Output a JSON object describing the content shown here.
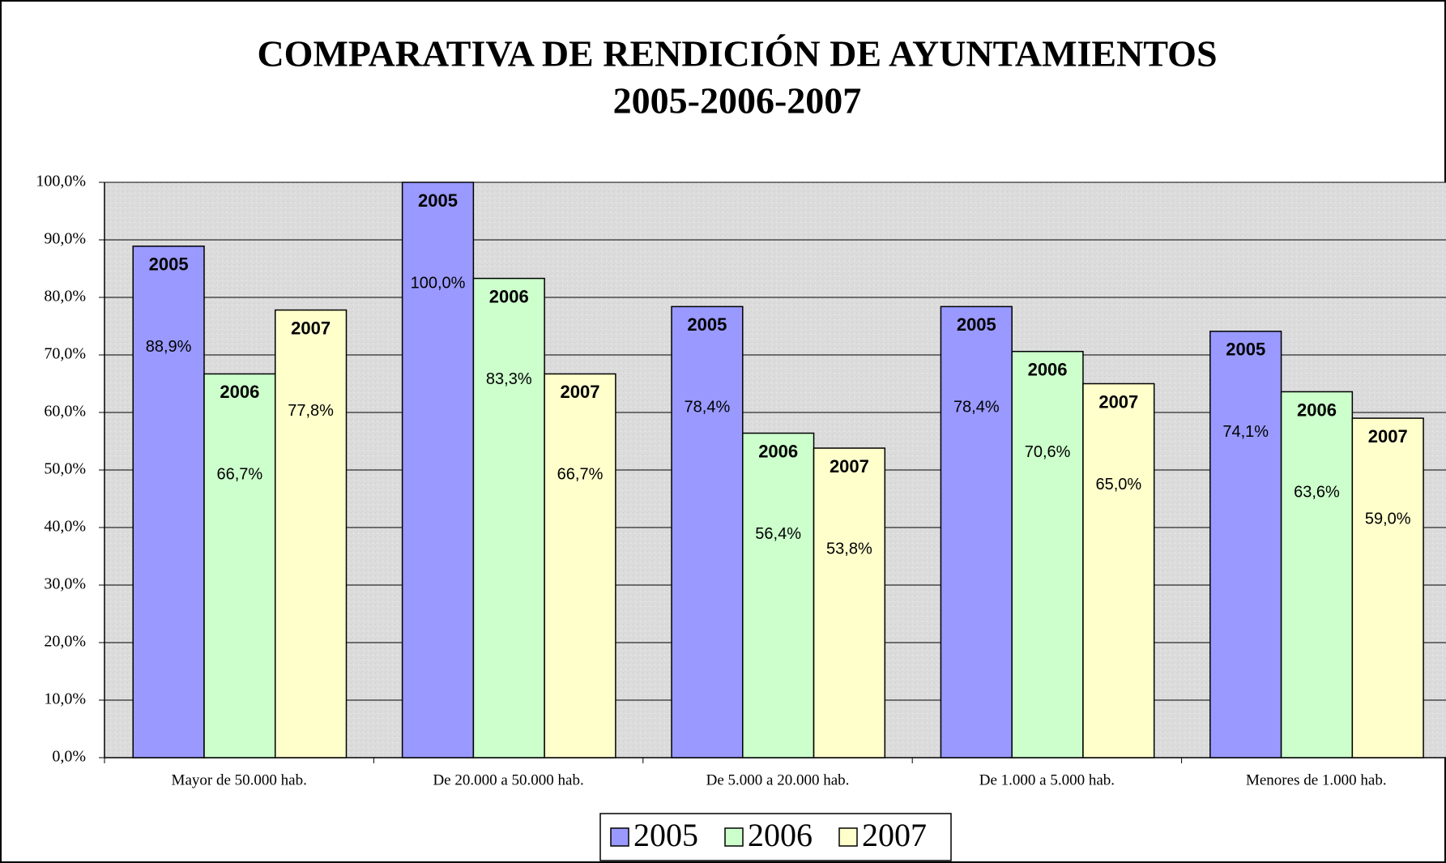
{
  "chart_data": {
    "type": "bar",
    "title": "COMPARATIVA DE RENDICIÓN DE AYUNTAMIENTOS",
    "subtitle": "2005-2006-2007",
    "categories": [
      "Mayor de 50.000 hab.",
      "De 20.000 a 50.000 hab.",
      "De 5.000 a 20.000 hab.",
      "De 1.000 a 5.000 hab.",
      "Menores de 1.000 hab."
    ],
    "series": [
      {
        "name": "2005",
        "color": "#9999ff",
        "values": [
          88.9,
          100.0,
          78.4,
          78.4,
          74.1
        ],
        "value_labels": [
          "88,9%",
          "100,0%",
          "78,4%",
          "78,4%",
          "74,1%"
        ]
      },
      {
        "name": "2006",
        "color": "#ccffcc",
        "values": [
          66.7,
          83.3,
          56.4,
          70.6,
          63.6
        ],
        "value_labels": [
          "66,7%",
          "83,3%",
          "56,4%",
          "70,6%",
          "63,6%"
        ]
      },
      {
        "name": "2007",
        "color": "#ffffcc",
        "values": [
          77.8,
          66.7,
          53.8,
          65.0,
          59.0
        ],
        "value_labels": [
          "77,8%",
          "66,7%",
          "53,8%",
          "65,0%",
          "59,0%"
        ]
      }
    ],
    "ylim": [
      0,
      100
    ],
    "yticks": [
      {
        "value": 0,
        "label": "0,0%"
      },
      {
        "value": 10,
        "label": "10,0%"
      },
      {
        "value": 20,
        "label": "20,0%"
      },
      {
        "value": 30,
        "label": "30,0%"
      },
      {
        "value": 40,
        "label": "40,0%"
      },
      {
        "value": 50,
        "label": "50,0%"
      },
      {
        "value": 60,
        "label": "60,0%"
      },
      {
        "value": 70,
        "label": "70,0%"
      },
      {
        "value": 80,
        "label": "80,0%"
      },
      {
        "value": 90,
        "label": "90,0%"
      },
      {
        "value": 100,
        "label": "100,0%"
      }
    ],
    "grid": true,
    "legend": "bottom"
  }
}
